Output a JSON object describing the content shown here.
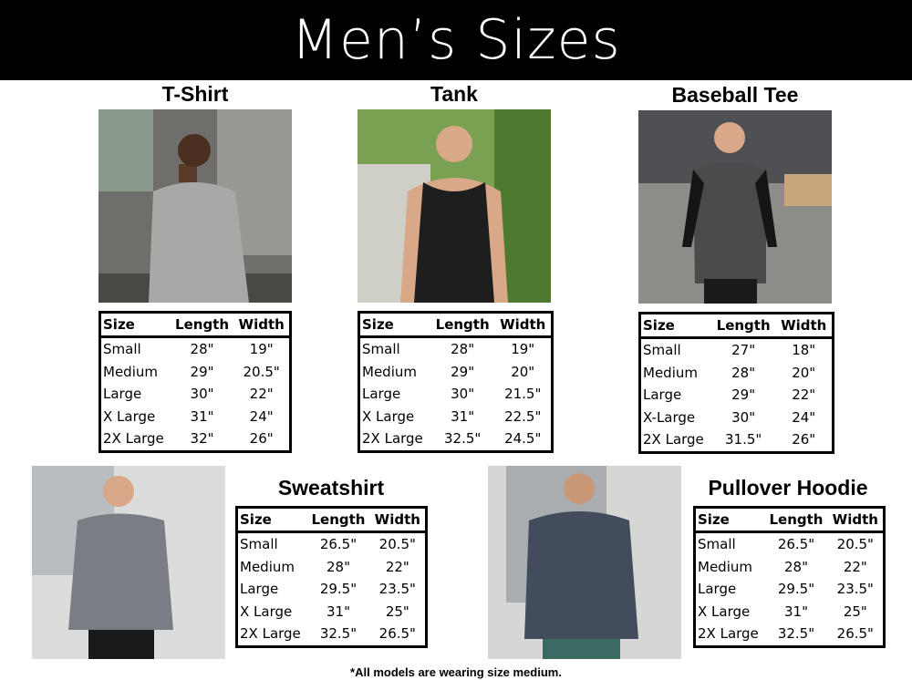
{
  "title": "Men’s Sizes",
  "columns": [
    "Size",
    "Length",
    "Width"
  ],
  "products": [
    {
      "name": "T-Shirt",
      "rows": [
        [
          "Small",
          "28\"",
          "19\""
        ],
        [
          "Medium",
          "29\"",
          "20.5\""
        ],
        [
          "Large",
          "30\"",
          "22\""
        ],
        [
          "X Large",
          "31\"",
          "24\""
        ],
        [
          "2X Large",
          "32\"",
          "26\""
        ]
      ]
    },
    {
      "name": "Tank",
      "rows": [
        [
          "Small",
          "28\"",
          "19\""
        ],
        [
          "Medium",
          "29\"",
          "20\""
        ],
        [
          "Large",
          "30\"",
          "21.5\""
        ],
        [
          "X Large",
          "31\"",
          "22.5\""
        ],
        [
          "2X Large",
          "32.5\"",
          "24.5\""
        ]
      ]
    },
    {
      "name": "Baseball Tee",
      "rows": [
        [
          "Small",
          "27\"",
          "18\""
        ],
        [
          "Medium",
          "28\"",
          "20\""
        ],
        [
          "Large",
          "29\"",
          "22\""
        ],
        [
          "X-Large",
          "30\"",
          "24\""
        ],
        [
          "2X Large",
          "31.5\"",
          "26\""
        ]
      ]
    },
    {
      "name": "Sweatshirt",
      "rows": [
        [
          "Small",
          "26.5\"",
          "20.5\""
        ],
        [
          "Medium",
          "28\"",
          "22\""
        ],
        [
          "Large",
          "29.5\"",
          "23.5\""
        ],
        [
          "X Large",
          "31\"",
          "25\""
        ],
        [
          "2X Large",
          "32.5\"",
          "26.5\""
        ]
      ]
    },
    {
      "name": "Pullover Hoodie",
      "rows": [
        [
          "Small",
          "26.5\"",
          "20.5\""
        ],
        [
          "Medium",
          "28\"",
          "22\""
        ],
        [
          "Large",
          "29.5\"",
          "23.5\""
        ],
        [
          "X Large",
          "31\"",
          "25\""
        ],
        [
          "2X Large",
          "32.5\"",
          "26.5\""
        ]
      ]
    }
  ],
  "footnote": "*All models are wearing size medium."
}
